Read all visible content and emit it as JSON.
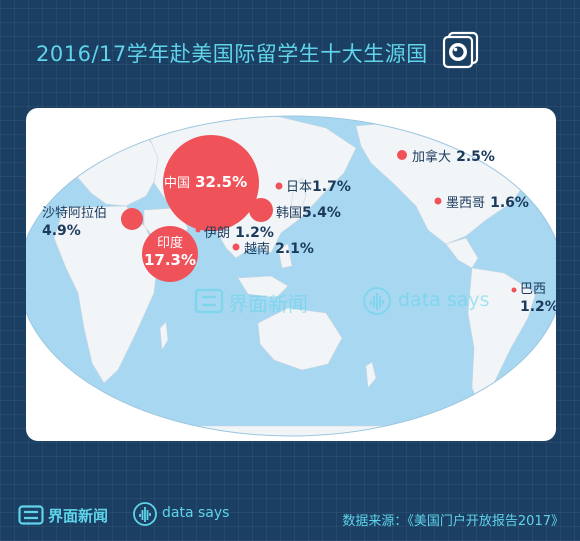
{
  "title": "2016/17学年赴美国际留学生十大生源国",
  "colors": {
    "bubble": "#f0525a",
    "title": "#5fd4ea",
    "background": "#1b3f63",
    "ocean": "#a8d8f1",
    "land": "#f2f5f8"
  },
  "countries": [
    {
      "name": "中国",
      "value": "32.5%",
      "pct": 32.5
    },
    {
      "name": "印度",
      "value": "17.3%",
      "pct": 17.3
    },
    {
      "name": "韩国",
      "value": "5.4%",
      "pct": 5.4
    },
    {
      "name": "沙特阿拉伯",
      "value": "4.9%",
      "pct": 4.9
    },
    {
      "name": "加拿大",
      "value": "2.5%",
      "pct": 2.5
    },
    {
      "name": "越南",
      "value": "2.1%",
      "pct": 2.1
    },
    {
      "name": "日本",
      "value": "1.7%",
      "pct": 1.7
    },
    {
      "name": "墨西哥",
      "value": "1.6%",
      "pct": 1.6
    },
    {
      "name": "伊朗",
      "value": "1.2%",
      "pct": 1.2
    },
    {
      "name": "巴西",
      "value": "1.2%",
      "pct": 1.2
    }
  ],
  "watermark": {
    "brand": "界面新闻",
    "datasays": "data says"
  },
  "footer": {
    "brand": "界面新闻",
    "datasays": "data says",
    "source": "数据来源：《美国门户开放报告2017》"
  }
}
